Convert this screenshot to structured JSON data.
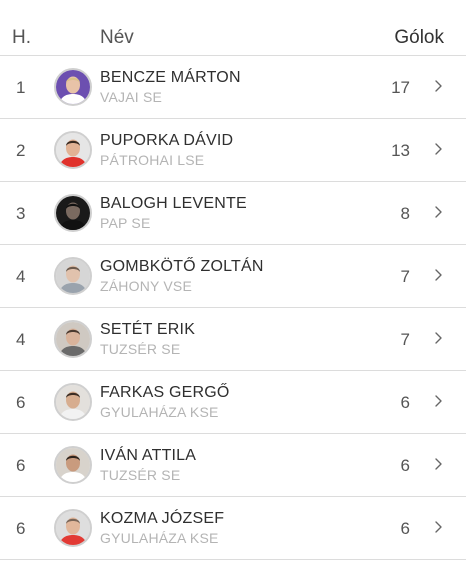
{
  "header": {
    "rank": "H.",
    "name": "Név",
    "goals": "Gólok"
  },
  "players": [
    {
      "rank": "1",
      "name": "BENCZE MÁRTON",
      "club": "VAJAI SE",
      "goals": "17",
      "avatar_bg": "#6c4fb0",
      "shirt": "#ffffff",
      "skin": "#e8c3a8",
      "hair": "#d9c08a"
    },
    {
      "rank": "2",
      "name": "PUPORKA DÁVID",
      "club": "PÁTROHAI LSE",
      "goals": "13",
      "avatar_bg": "#e6e6e6",
      "shirt": "#e0322c",
      "skin": "#e2b294",
      "hair": "#3a2a20"
    },
    {
      "rank": "3",
      "name": "BALOGH LEVENTE",
      "club": "PAP SE",
      "goals": "8",
      "avatar_bg": "#1a1a1a",
      "shirt": "#111111",
      "skin": "#7a6a60",
      "hair": "#111111"
    },
    {
      "rank": "4",
      "name": "GOMBKÖTŐ ZOLTÁN",
      "club": "ZÁHONY VSE",
      "goals": "7",
      "avatar_bg": "#d6d6d6",
      "shirt": "#9aa3ad",
      "skin": "#e1c2ad",
      "hair": "#6b5a4d"
    },
    {
      "rank": "4",
      "name": "SETÉT ERIK",
      "club": "TUZSÉR SE",
      "goals": "7",
      "avatar_bg": "#cfc9c2",
      "shirt": "#6a6a6a",
      "skin": "#d9b39b",
      "hair": "#4a3a30"
    },
    {
      "rank": "6",
      "name": "FARKAS GERGŐ",
      "club": "GYULAHÁZA KSE",
      "goals": "6",
      "avatar_bg": "#e3e0dc",
      "shirt": "#f2f2f2",
      "skin": "#d7ad8f",
      "hair": "#3c2d24"
    },
    {
      "rank": "6",
      "name": "IVÁN ATTILA",
      "club": "TUZSÉR SE",
      "goals": "6",
      "avatar_bg": "#d8d3cc",
      "shirt": "#ffffff",
      "skin": "#c99b7e",
      "hair": "#2e241d"
    },
    {
      "rank": "6",
      "name": "KOZMA JÓZSEF",
      "club": "GYULAHÁZA KSE",
      "goals": "6",
      "avatar_bg": "#dedede",
      "shirt": "#e23a34",
      "skin": "#e1b79b",
      "hair": "#7a6658"
    }
  ]
}
